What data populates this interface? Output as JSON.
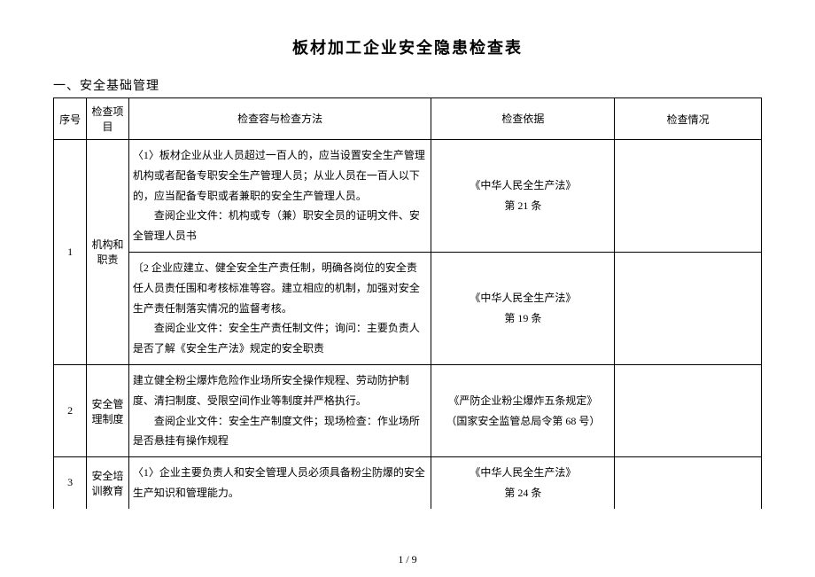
{
  "title": "板材加工企业安全隐患检查表",
  "section_header": "一、安全基础管理",
  "columns": {
    "seq": "序号",
    "item": "检查项目",
    "content": "检查容与检查方法",
    "basis": "检查依据",
    "status": "检查情况"
  },
  "rows": [
    {
      "seq": "1",
      "item": "机构和职责",
      "content_a": "〈1〉板材企业从业人员超过一百人的，应当设置安全生产管理机构或者配备专职安全生产管理人员；从业人员在一百人以下的，应当配备专职或者兼职的安全生产管理人员。",
      "content_a_sub": "查阅企业文件：机构或专（兼）职安全员的证明文件、安全管理人员书",
      "basis_a": "《中华人民全生产法》\n第 21 条",
      "content_b": "〔2 企业应建立、健全安全生产责任制，明确各岗位的安全责任人员责任围和考核标准等容。建立相应的机制，加强对安全生产责任制落实情况的监督考核。",
      "content_b_sub": "查阅企业文件：安全生产责任制文件；询问：主要负责人是否了解《安全生产法》规定的安全职责",
      "basis_b": "《中华人民全生产法》\n第 19 条"
    },
    {
      "seq": "2",
      "item": "安全管理制度",
      "content": "建立健全粉尘爆炸危险作业场所安全操作规程、劳动防护制度、清扫制度、受限空间作业等制度并严格执行。",
      "content_sub": "查阅企业文件：安全生产制度文件；现场检查：作业场所是否悬挂有操作规程",
      "basis": "《严防企业粉尘爆炸五条规定》\n（国家安全监管总局令第 68 号）"
    },
    {
      "seq": "3",
      "item": "安全培训教育",
      "content": "〈1〉企业主要负责人和安全管理人员必须具备粉尘防爆的安全生产知识和管理能力。",
      "basis": "《中华人民全生产法》\n第 24 条"
    }
  ],
  "footer": "1 / 9",
  "colors": {
    "bg": "#ffffff",
    "text": "#000000",
    "border": "#000000"
  }
}
